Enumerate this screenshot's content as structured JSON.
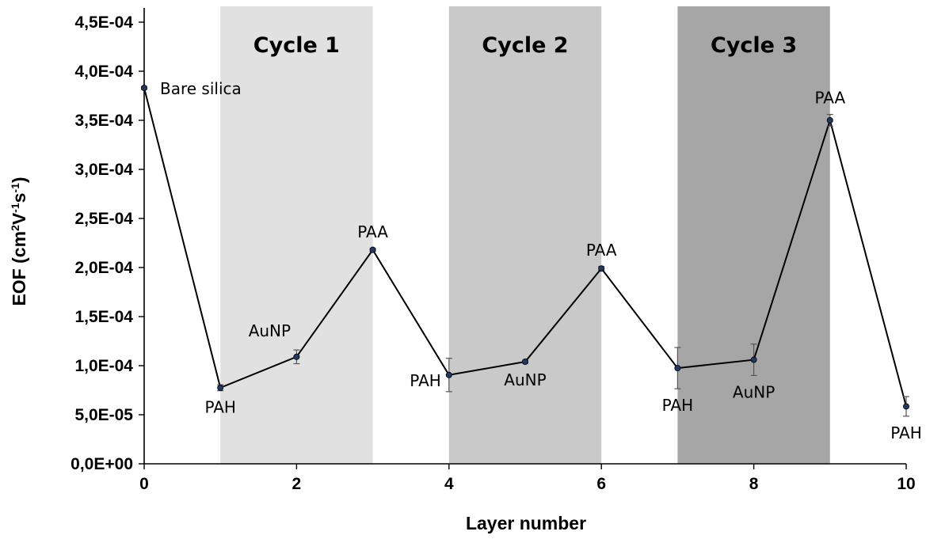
{
  "chart_data": {
    "type": "line",
    "xlabel": "Layer number",
    "ylabel": "EOF (cm²V⁻¹s⁻¹)",
    "ylabel_parts": {
      "prefix": "EOF (cm",
      "sup1": "2",
      "mid1": "V",
      "sup2": "-1",
      "mid2": "s",
      "sup3": "-1",
      "suffix": ")"
    },
    "xlim": [
      0,
      10
    ],
    "ylim": [
      0,
      0.00045
    ],
    "x_ticks": [
      "0",
      "2",
      "4",
      "6",
      "8",
      "10"
    ],
    "x_tick_values": [
      0,
      2,
      4,
      6,
      8,
      10
    ],
    "y_ticks": [
      "0,0E+00",
      "5,0E-05",
      "1,0E-04",
      "1,5E-04",
      "2,0E-04",
      "2,5E-04",
      "3,0E-04",
      "3,5E-04",
      "4,0E-04",
      "4,5E-04"
    ],
    "y_tick_values": [
      0,
      5e-05,
      0.0001,
      0.00015,
      0.0002,
      0.00025,
      0.0003,
      0.00035,
      0.0004,
      0.00045
    ],
    "grid": false,
    "legend": "none",
    "series": [
      {
        "x": [
          0,
          1,
          2,
          3,
          4,
          5,
          6,
          7,
          8,
          9,
          10
        ],
        "y": [
          0.000383,
          7.75e-05,
          0.000109,
          0.000218,
          9.05e-05,
          0.000104,
          0.000199,
          9.75e-05,
          0.000106,
          0.00035,
          5.85e-05
        ],
        "error": [
          1.5e-06,
          3e-06,
          7e-06,
          1.5e-06,
          1.7e-05,
          1.5e-06,
          2e-06,
          2.1e-05,
          1.6e-05,
          6e-06,
          1e-05
        ],
        "labels": [
          "Bare silica",
          "PAH",
          "AuNP",
          "PAA",
          "PAH",
          "AuNP",
          "PAA",
          "PAH",
          "AuNP",
          "PAA",
          "PAH"
        ],
        "label_positions": [
          "right",
          "below",
          "above-left",
          "above",
          "left",
          "below",
          "above",
          "below",
          "below",
          "above",
          "below"
        ],
        "color": "#000000",
        "marker_color": "#1f3864"
      }
    ],
    "regions": [
      {
        "label": "Cycle 1",
        "x_start": 1,
        "x_end": 3,
        "color": "#e1e1e1"
      },
      {
        "label": "Cycle 2",
        "x_start": 4,
        "x_end": 6,
        "color": "#c9c9c9"
      },
      {
        "label": "Cycle 3",
        "x_start": 7,
        "x_end": 9,
        "color": "#a6a6a6"
      }
    ]
  }
}
